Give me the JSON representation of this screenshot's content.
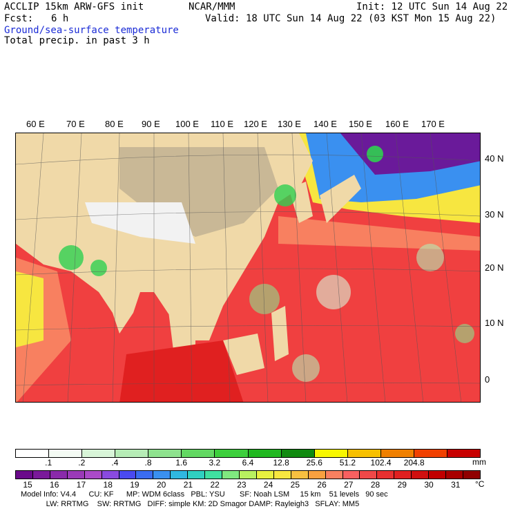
{
  "header": {
    "model_title": "ACCLIP 15km ARW-GFS init",
    "fcst_label": "Fcst:",
    "fcst_value": "6 h",
    "org": "NCAR/MMM",
    "init_text": "Init: 12 UTC Sun 14 Aug 22",
    "valid_text": "Valid: 18 UTC Sun 14 Aug 22 (03 KST Mon 15 Aug 22)",
    "field1": "Ground/sea-surface temperature",
    "field2": "Total precip. in past 3 h"
  },
  "map": {
    "lon_labels": [
      "60 E",
      "70 E",
      "80 E",
      "90 E",
      "100 E",
      "110 E",
      "120 E",
      "130 E",
      "140 E",
      "150 E",
      "160 E",
      "170 E"
    ],
    "lat_labels": [
      "40 N",
      "30 N",
      "20 N",
      "10 N",
      "0"
    ],
    "colors": {
      "land": "#f0d9a8",
      "plateau": "#c9b896",
      "snow": "#f2f2f2",
      "sea_warm": "#f04040",
      "sea_hot": "#e02020",
      "sea_mid": "#f88060",
      "sea_cool_yellow": "#f7e640",
      "sea_cool_blue": "#3a6cf0",
      "sea_cold_purple": "#6a1a9a",
      "rain": "#30d050"
    }
  },
  "precip_bar": {
    "labels": [
      ".1",
      ".2",
      ".4",
      ".8",
      "1.6",
      "3.2",
      "6.4",
      "12.8",
      "25.6",
      "51.2",
      "102.4",
      "204.8"
    ],
    "unit": "mm",
    "colors": [
      "#ffffff",
      "#f4fbf4",
      "#d8f5d8",
      "#b6ecb6",
      "#8ee28e",
      "#62d862",
      "#3ccf3c",
      "#20b820",
      "#108a10",
      "#f7f700",
      "#f7c000",
      "#f08000",
      "#f04000",
      "#c80000"
    ]
  },
  "temp_bar": {
    "labels": [
      "15",
      "16",
      "17",
      "18",
      "19",
      "20",
      "21",
      "22",
      "23",
      "24",
      "25",
      "26",
      "27",
      "28",
      "29",
      "30",
      "31"
    ],
    "unit": "°C",
    "colors": [
      "#6a0a8a",
      "#7a1a9a",
      "#8a2aaa",
      "#9a3ab8",
      "#aa4ac8",
      "#8a4ae0",
      "#4a4af0",
      "#3a6cf0",
      "#3a90f0",
      "#30b8e0",
      "#30d0c0",
      "#40e0a0",
      "#80e880",
      "#b8f060",
      "#e8f040",
      "#f7e640",
      "#f8c040",
      "#f8a040",
      "#f88060",
      "#f86060",
      "#f04848",
      "#e83030",
      "#e02020",
      "#d01010",
      "#c00000",
      "#a80000",
      "#900000"
    ]
  },
  "footer": {
    "line1": "Model Info: V4.4      CU: KF      MP: WDM 6class   PBL: YSU       SF: Noah LSM     15 km    51 levels   90 sec",
    "line2": "            LW: RRTMG    SW: RRTMG   DIFF: simple KM: 2D Smagor DAMP: Rayleigh3   SFLAY: MM5"
  }
}
